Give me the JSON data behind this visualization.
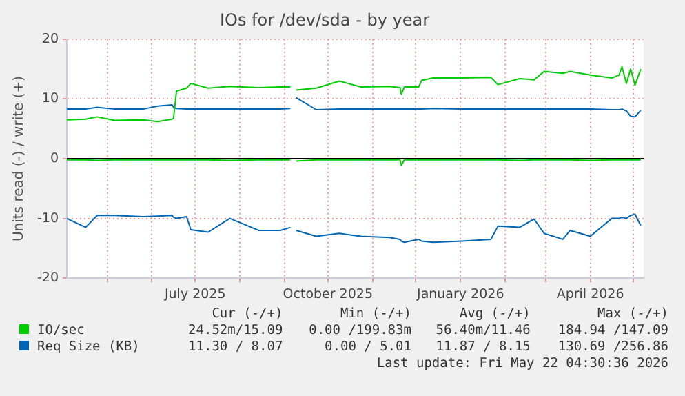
{
  "chart_data": {
    "type": "line",
    "title": "IOs for /dev/sda - by year",
    "ylabel": "Units read (-) / write (+)",
    "x": [
      "2025-04-03",
      "2025-04-16",
      "2025-04-24",
      "2025-05-06",
      "2025-05-26",
      "2025-06-05",
      "2025-06-15",
      "2025-06-16",
      "2025-06-18",
      "2025-06-25",
      "2025-06-28",
      "2025-07-10",
      "2025-07-25",
      "2025-08-14",
      "2025-08-29",
      "2025-09-05",
      "2025-09-07",
      "2025-09-09",
      "2025-09-23",
      "2025-10-09",
      "2025-10-24",
      "2025-11-13",
      "2025-11-20",
      "2025-11-21",
      "2025-11-23",
      "2025-12-03",
      "2025-12-05",
      "2025-12-13",
      "2026-01-02",
      "2026-01-22",
      "2026-01-27",
      "2026-02-11",
      "2026-02-21",
      "2026-02-28",
      "2026-03-13",
      "2026-03-18",
      "2026-04-01",
      "2026-04-16",
      "2026-04-21",
      "2026-04-23",
      "2026-04-26",
      "2026-04-29",
      "2026-05-02",
      "2026-05-06"
    ],
    "series": [
      {
        "name": "IO/sec",
        "color": "#00cc00",
        "values": [
          6.5,
          6.6,
          7.0,
          6.4,
          6.5,
          6.2,
          6.6,
          6.8,
          11.3,
          11.8,
          12.6,
          11.8,
          12.1,
          11.9,
          12.0,
          12.0,
          null,
          11.5,
          11.8,
          13.0,
          12.0,
          12.1,
          11.9,
          10.8,
          12.0,
          12.0,
          13.1,
          13.5,
          13.5,
          13.6,
          12.4,
          13.4,
          13.2,
          14.6,
          14.3,
          14.6,
          14.0,
          13.5,
          14.0,
          15.4,
          12.6,
          15.0,
          12.3,
          15.0
        ]
      },
      {
        "color": "#00cc00",
        "values": [
          -0.2,
          -0.2,
          -0.3,
          -0.2,
          -0.2,
          -0.2,
          -0.2,
          -0.2,
          -0.2,
          -0.2,
          -0.2,
          -0.2,
          -0.3,
          -0.2,
          -0.2,
          -0.2,
          null,
          -0.4,
          -0.2,
          -0.2,
          -0.2,
          -0.2,
          -0.2,
          -1.1,
          -0.2,
          -0.2,
          -0.2,
          -0.2,
          -0.2,
          -0.2,
          -0.2,
          -0.3,
          -0.2,
          -0.2,
          -0.2,
          -0.2,
          -0.3,
          -0.2,
          -0.2,
          -0.2,
          -0.2,
          -0.2,
          -0.2,
          -0.2
        ]
      },
      {
        "name": "Req Size (KB)",
        "color": "#0066b3",
        "values": [
          8.3,
          8.3,
          8.6,
          8.3,
          8.3,
          8.8,
          9.0,
          8.6,
          8.4,
          8.3,
          8.3,
          8.3,
          8.3,
          8.3,
          8.3,
          8.4,
          null,
          10.2,
          8.2,
          8.3,
          8.3,
          8.3,
          8.3,
          8.3,
          8.3,
          8.3,
          8.3,
          8.4,
          8.3,
          8.3,
          8.3,
          8.3,
          8.3,
          8.3,
          8.3,
          8.3,
          8.3,
          8.2,
          8.2,
          8.3,
          8.0,
          7.1,
          7.0,
          8.1
        ]
      },
      {
        "color": "#0066b3",
        "values": [
          -10.0,
          -11.5,
          -9.5,
          -9.5,
          -9.7,
          -9.6,
          -9.5,
          -9.8,
          -10.0,
          -9.7,
          -11.9,
          -12.3,
          -10.0,
          -12.0,
          -12.0,
          -11.5,
          null,
          -12.0,
          -13.0,
          -12.5,
          -13.0,
          -13.2,
          -13.5,
          -13.8,
          -14.0,
          -13.5,
          -13.8,
          -14.0,
          -13.8,
          -13.5,
          -11.3,
          -11.5,
          -10.1,
          -12.5,
          -13.5,
          -12.0,
          -13.0,
          -10.0,
          -10.0,
          -9.8,
          -10.0,
          -9.5,
          -9.3,
          -11.2
        ]
      }
    ],
    "xlim": [
      "2025-04-03",
      "2026-05-08"
    ],
    "xticks": [
      {
        "value": "2025-05-01",
        "label": null
      },
      {
        "value": "2025-06-01",
        "label": null
      },
      {
        "value": "2025-07-01",
        "label": "July 2025"
      },
      {
        "value": "2025-08-01",
        "label": null
      },
      {
        "value": "2025-09-01",
        "label": null
      },
      {
        "value": "2025-10-01",
        "label": "October 2025"
      },
      {
        "value": "2025-11-01",
        "label": null
      },
      {
        "value": "2025-12-01",
        "label": null
      },
      {
        "value": "2026-01-01",
        "label": "January 2026"
      },
      {
        "value": "2026-02-01",
        "label": null
      },
      {
        "value": "2026-03-01",
        "label": null
      },
      {
        "value": "2026-04-01",
        "label": "April 2026"
      },
      {
        "value": "2026-05-01",
        "label": null
      }
    ],
    "ylim": [
      -20,
      20
    ],
    "yticks": [
      -20,
      -10,
      0,
      10,
      20
    ],
    "ref_lines": [
      {
        "axis": "y",
        "value": 0,
        "color": "#000000"
      }
    ],
    "grid": true,
    "legend": "bottom",
    "marker": "none",
    "line_style": "solid",
    "annotations": [
      "Cur (-/+)",
      "Min (-/+)",
      "Avg (-/+)",
      "Max (-/+)",
      "24.52m/15.09",
      "0.00 /199.83m",
      "56.40m/11.46",
      "184.94 /147.09",
      "11.30 / 8.07",
      "0.00 / 5.01",
      "11.87 / 8.15",
      "130.69 /256.86",
      "Last update: Fri May 22 04:30:36 2026"
    ]
  }
}
